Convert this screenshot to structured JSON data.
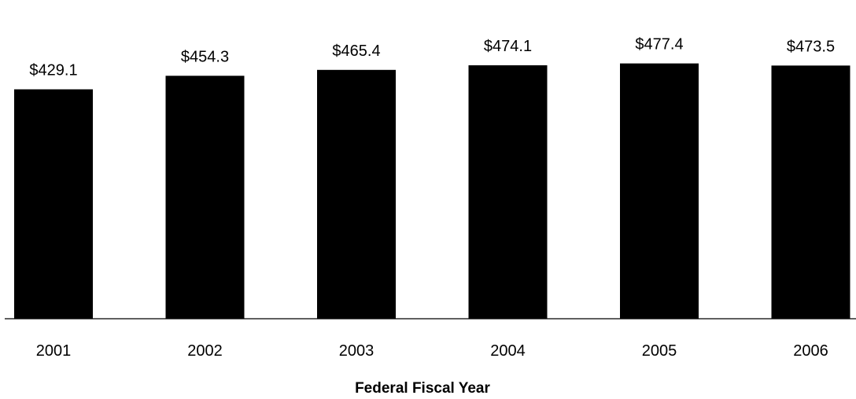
{
  "chart_data": {
    "type": "bar",
    "categories": [
      "2001",
      "2002",
      "2003",
      "2004",
      "2005",
      "2006"
    ],
    "values": [
      429.1,
      454.3,
      465.4,
      474.1,
      477.4,
      473.5
    ],
    "data_labels": [
      "$429.1",
      "$454.3",
      "$465.4",
      "$474.1",
      "$477.4",
      "$473.5"
    ],
    "title": "",
    "xlabel": "Federal Fiscal Year",
    "ylabel": "",
    "ylim": [
      0,
      510
    ],
    "grid": false,
    "legend": "none",
    "bar_color": "#000000"
  }
}
